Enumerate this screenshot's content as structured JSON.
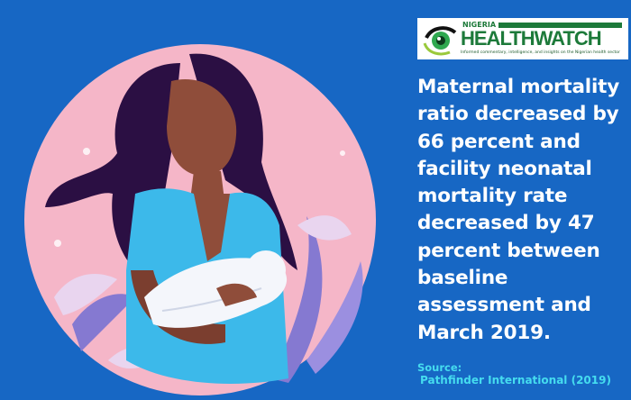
{
  "logo": {
    "top": "NIGERIA",
    "name": "HEALTHWATCH",
    "tagline": "Informed commentary, intelligence, and insights on the Nigerian health sector",
    "brand_color": "#1d7a3a"
  },
  "headline": "Maternal mortality ratio decreased by 66 percent and facility neonatal mortality rate decreased by 47 percent between baseline assessment and March 2019.",
  "source": {
    "label": "Source:",
    "text": "Pathfinder International (2019)"
  },
  "colors": {
    "background": "#1767c4",
    "circle": "#f5b6c8",
    "source_text": "#45dcef"
  }
}
